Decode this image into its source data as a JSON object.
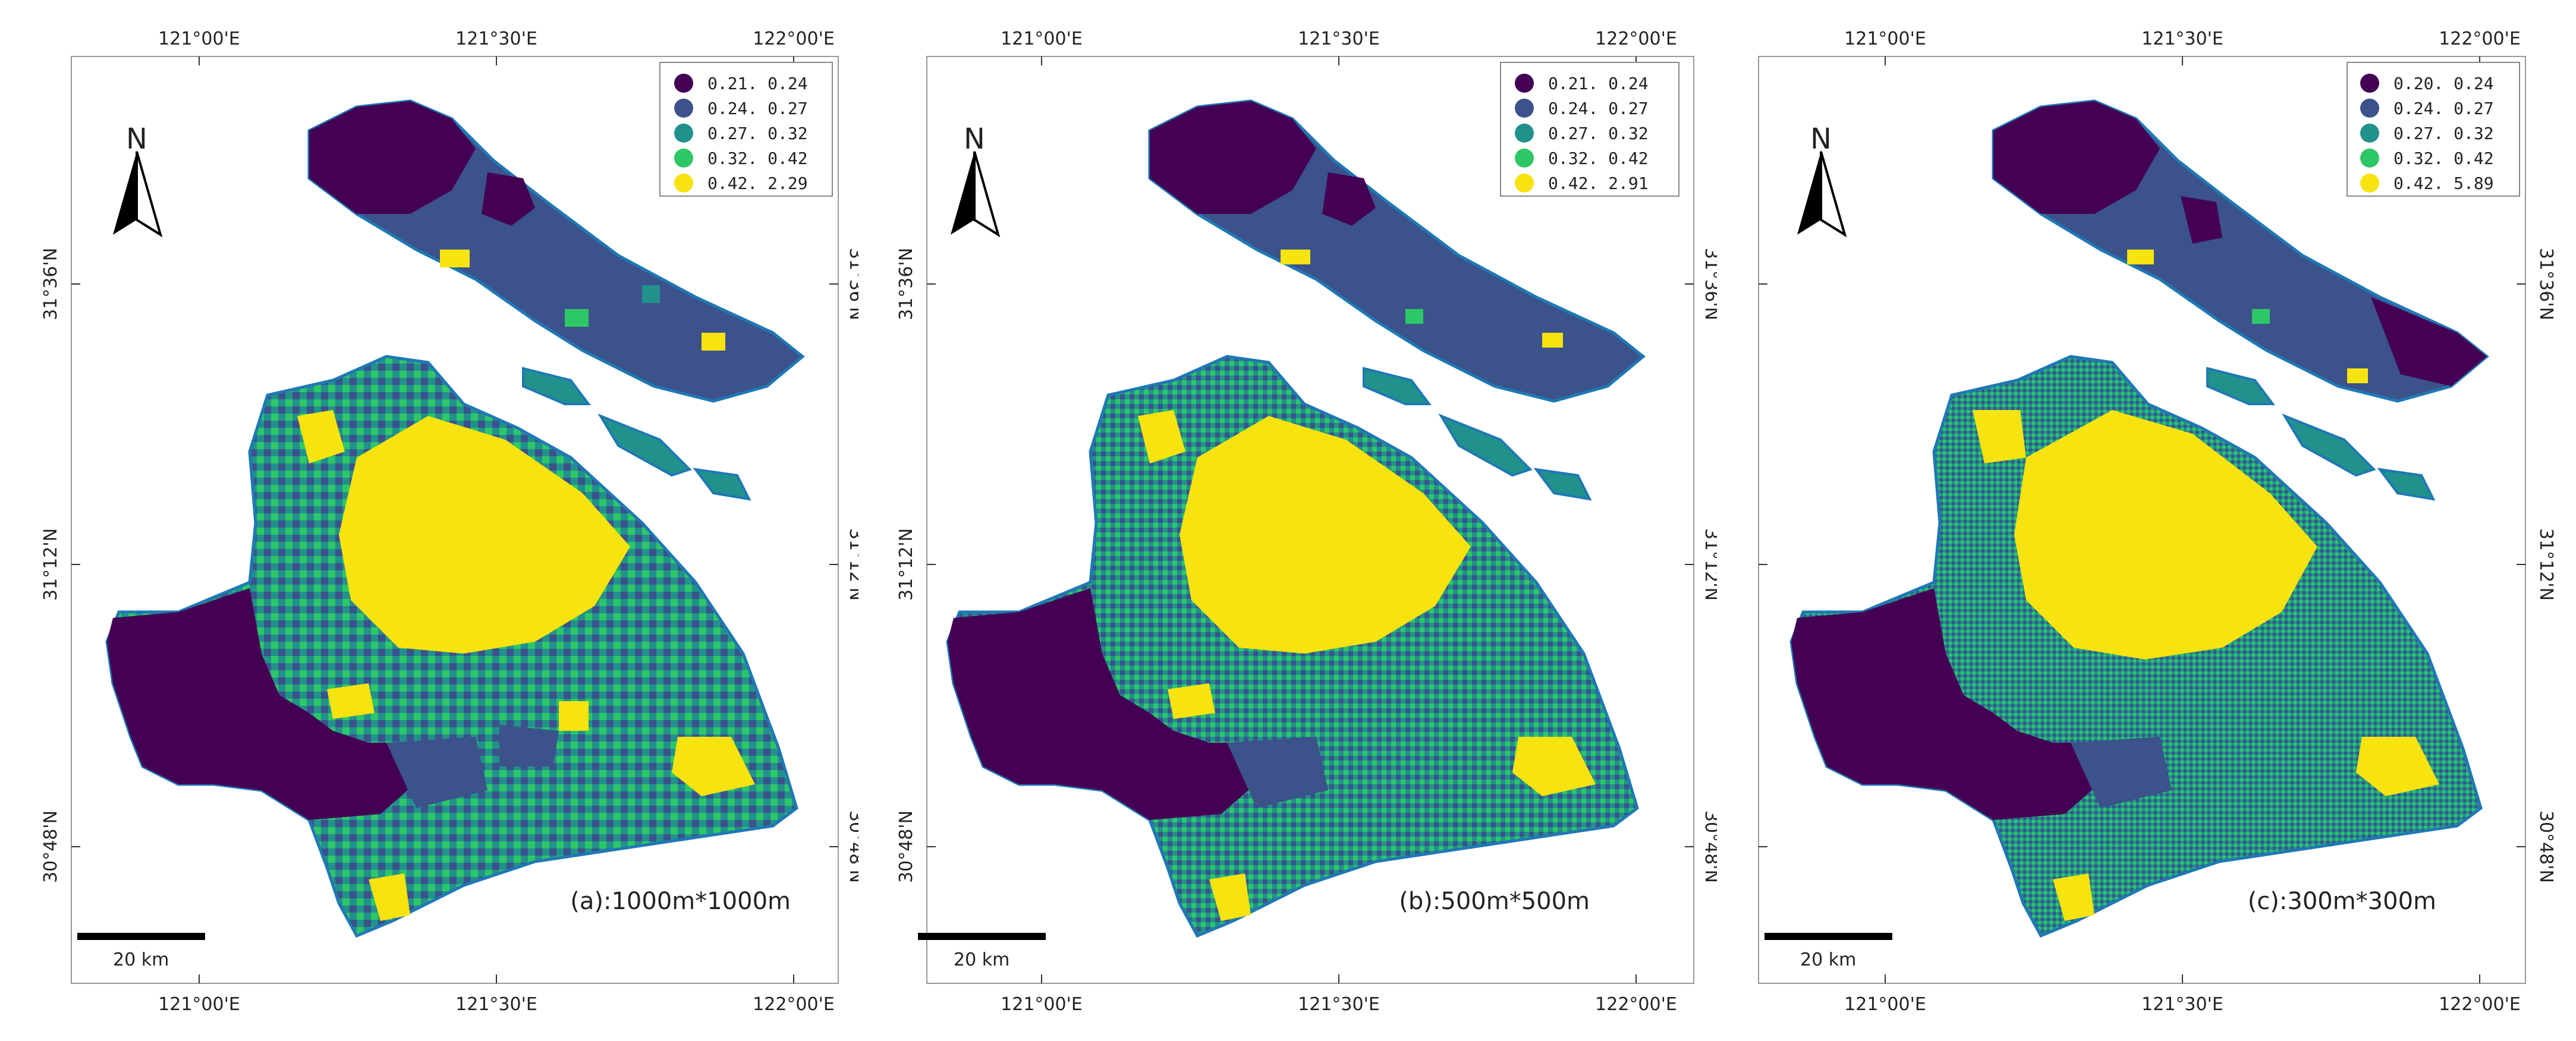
{
  "figure": {
    "axes": {
      "top_ticks": [
        "121°00'E",
        "121°30'E",
        "122°00'E"
      ],
      "bottom_ticks": [
        "121°00'E",
        "121°30'E",
        "122°00'E"
      ],
      "left_ticks": [
        "31°36'N",
        "31°12'N",
        "30°48'N"
      ],
      "right_ticks": [
        "31°36'N",
        "31°12'N",
        "30°48'N"
      ]
    },
    "north_arrow": "N",
    "scale_bar": "20  km",
    "colors": [
      "#440154",
      "#3b528b",
      "#21918c",
      "#2ec767",
      "#f7e30f"
    ],
    "panels": [
      {
        "caption": "(a):1000m*1000m",
        "legend": [
          "0.21. 0.24",
          "0.24. 0.27",
          "0.27. 0.32",
          "0.32. 0.42",
          "0.42. 2.29"
        ]
      },
      {
        "caption": "(b):500m*500m",
        "legend": [
          "0.21. 0.24",
          "0.24. 0.27",
          "0.27. 0.32",
          "0.32. 0.42",
          "0.42. 2.91"
        ]
      },
      {
        "caption": "(c):300m*300m",
        "legend": [
          "0.20. 0.24",
          "0.24. 0.27",
          "0.27. 0.32",
          "0.32. 0.42",
          "0.42. 5.89"
        ]
      }
    ]
  }
}
